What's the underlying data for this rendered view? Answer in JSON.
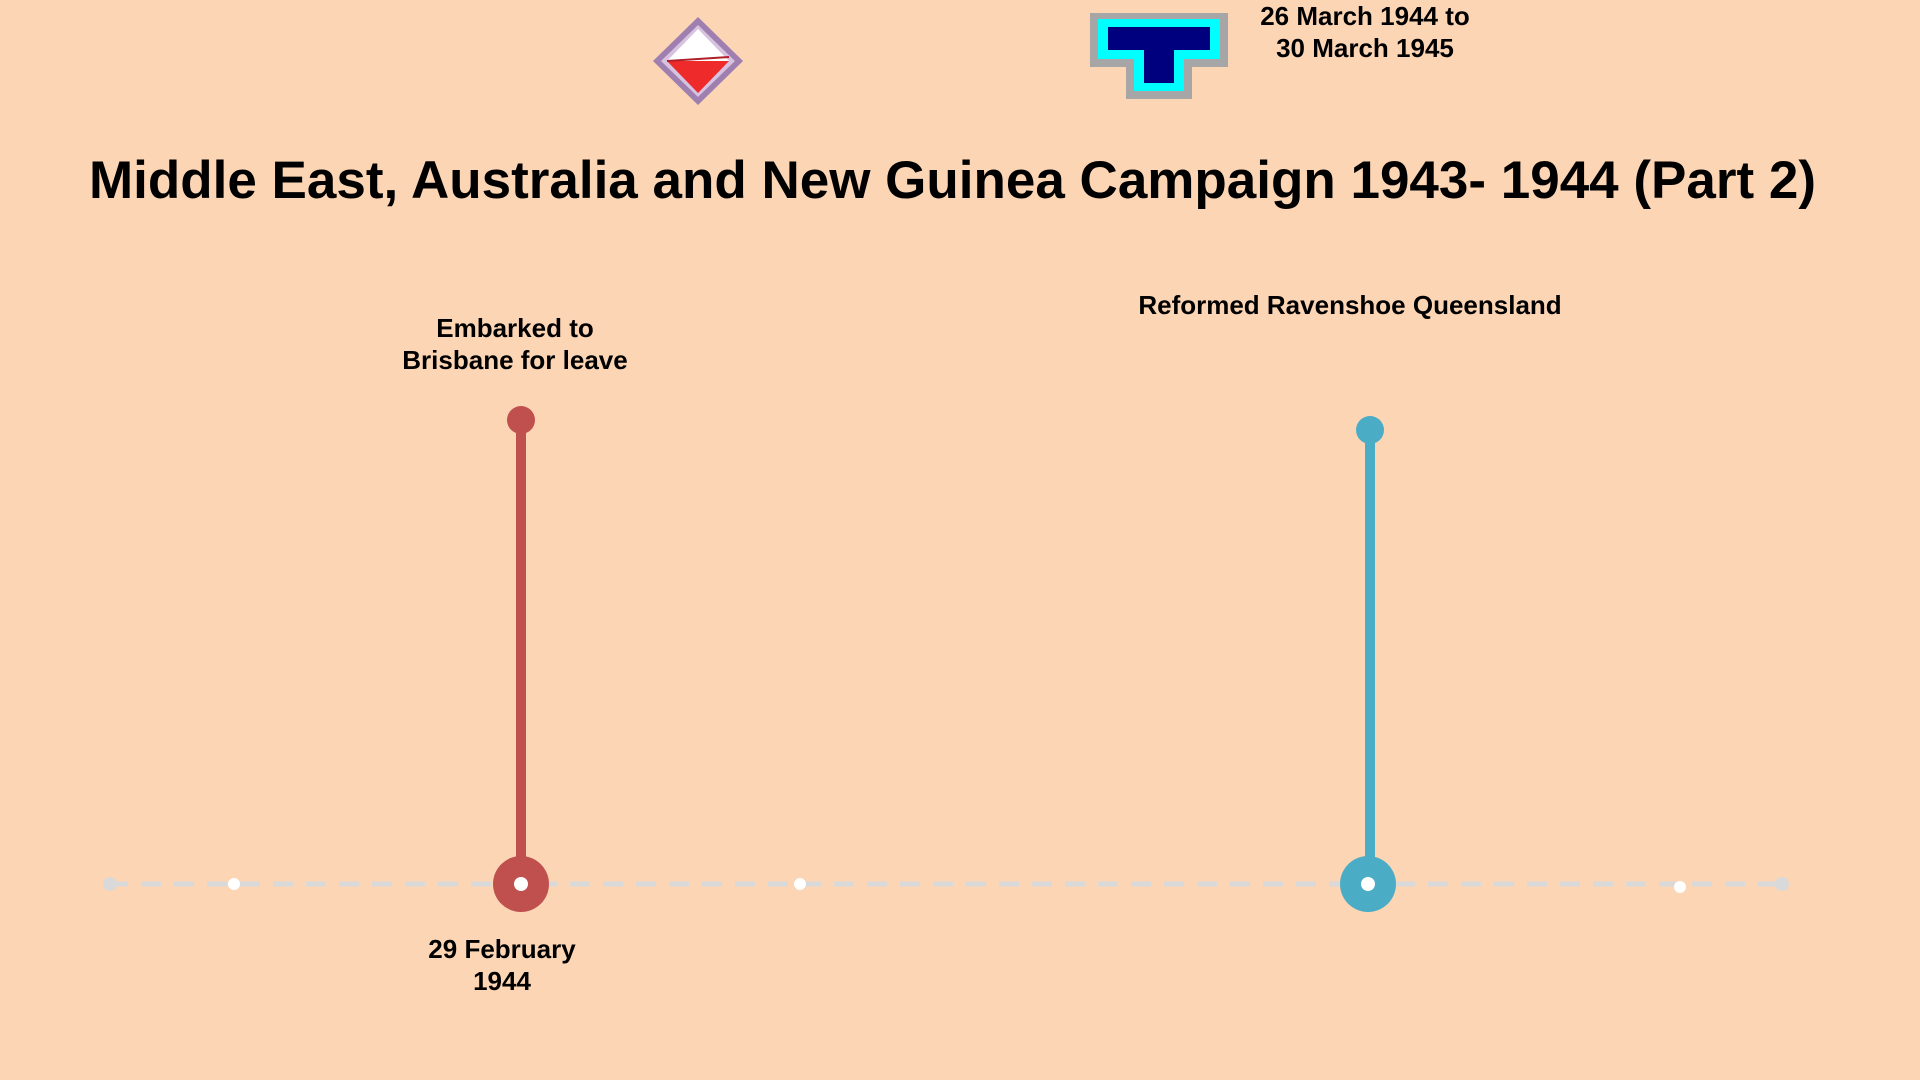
{
  "title": "Middle East, Australia and New Guinea Campaign 1943- 1944 (Part 2)",
  "insignia": [
    {
      "name": "diamond-unit-patch",
      "colors": {
        "border": "#9E7FB0",
        "top": "#FFFFFF",
        "bottom": "#EE2A2A"
      }
    },
    {
      "name": "t-shape-unit-patch",
      "colors": {
        "outer": "#A6A6A6",
        "middle": "#00FFFF",
        "inner": "#00007F"
      }
    }
  ],
  "timeline": {
    "axis_color": "#D9D9D9",
    "events": [
      {
        "label_lines": [
          "Embarked to",
          "Brisbane for leave"
        ],
        "date_lines": [
          "29 February",
          "1944"
        ],
        "color": "#C0504D"
      },
      {
        "label_lines": [
          "Reformed Ravenshoe Queensland"
        ],
        "date_lines": [
          "26 March 1944 to",
          "30 March 1945"
        ],
        "color": "#4BACC6"
      }
    ]
  }
}
